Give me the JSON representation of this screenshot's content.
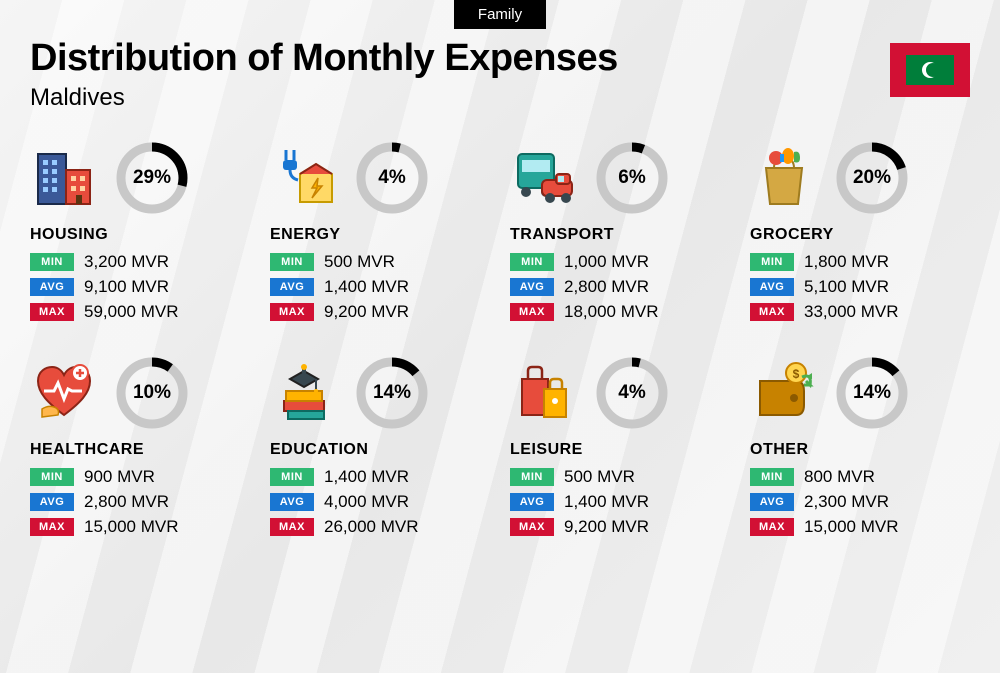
{
  "tag": "Family",
  "title": "Distribution of Monthly Expenses",
  "subtitle": "Maldives",
  "currency": "MVR",
  "labels": {
    "min": "MIN",
    "avg": "AVG",
    "max": "MAX"
  },
  "colors": {
    "min": "#2eb872",
    "avg": "#1976d2",
    "max": "#d21034",
    "donut_bg": "#c8c8c8",
    "donut_fg": "#000000",
    "flag_red": "#d21034",
    "flag_green": "#007e3a"
  },
  "donut": {
    "radius": 31,
    "stroke_width": 9
  },
  "categories": [
    {
      "name": "HOUSING",
      "pct": 29,
      "min": "3,200",
      "avg": "9,100",
      "max": "59,000",
      "icon": "buildings"
    },
    {
      "name": "ENERGY",
      "pct": 4,
      "min": "500",
      "avg": "1,400",
      "max": "9,200",
      "icon": "energy"
    },
    {
      "name": "TRANSPORT",
      "pct": 6,
      "min": "1,000",
      "avg": "2,800",
      "max": "18,000",
      "icon": "transport"
    },
    {
      "name": "GROCERY",
      "pct": 20,
      "min": "1,800",
      "avg": "5,100",
      "max": "33,000",
      "icon": "grocery"
    },
    {
      "name": "HEALTHCARE",
      "pct": 10,
      "min": "900",
      "avg": "2,800",
      "max": "15,000",
      "icon": "healthcare"
    },
    {
      "name": "EDUCATION",
      "pct": 14,
      "min": "1,400",
      "avg": "4,000",
      "max": "26,000",
      "icon": "education"
    },
    {
      "name": "LEISURE",
      "pct": 4,
      "min": "500",
      "avg": "1,400",
      "max": "9,200",
      "icon": "leisure"
    },
    {
      "name": "OTHER",
      "pct": 14,
      "min": "800",
      "avg": "2,300",
      "max": "15,000",
      "icon": "other"
    }
  ]
}
